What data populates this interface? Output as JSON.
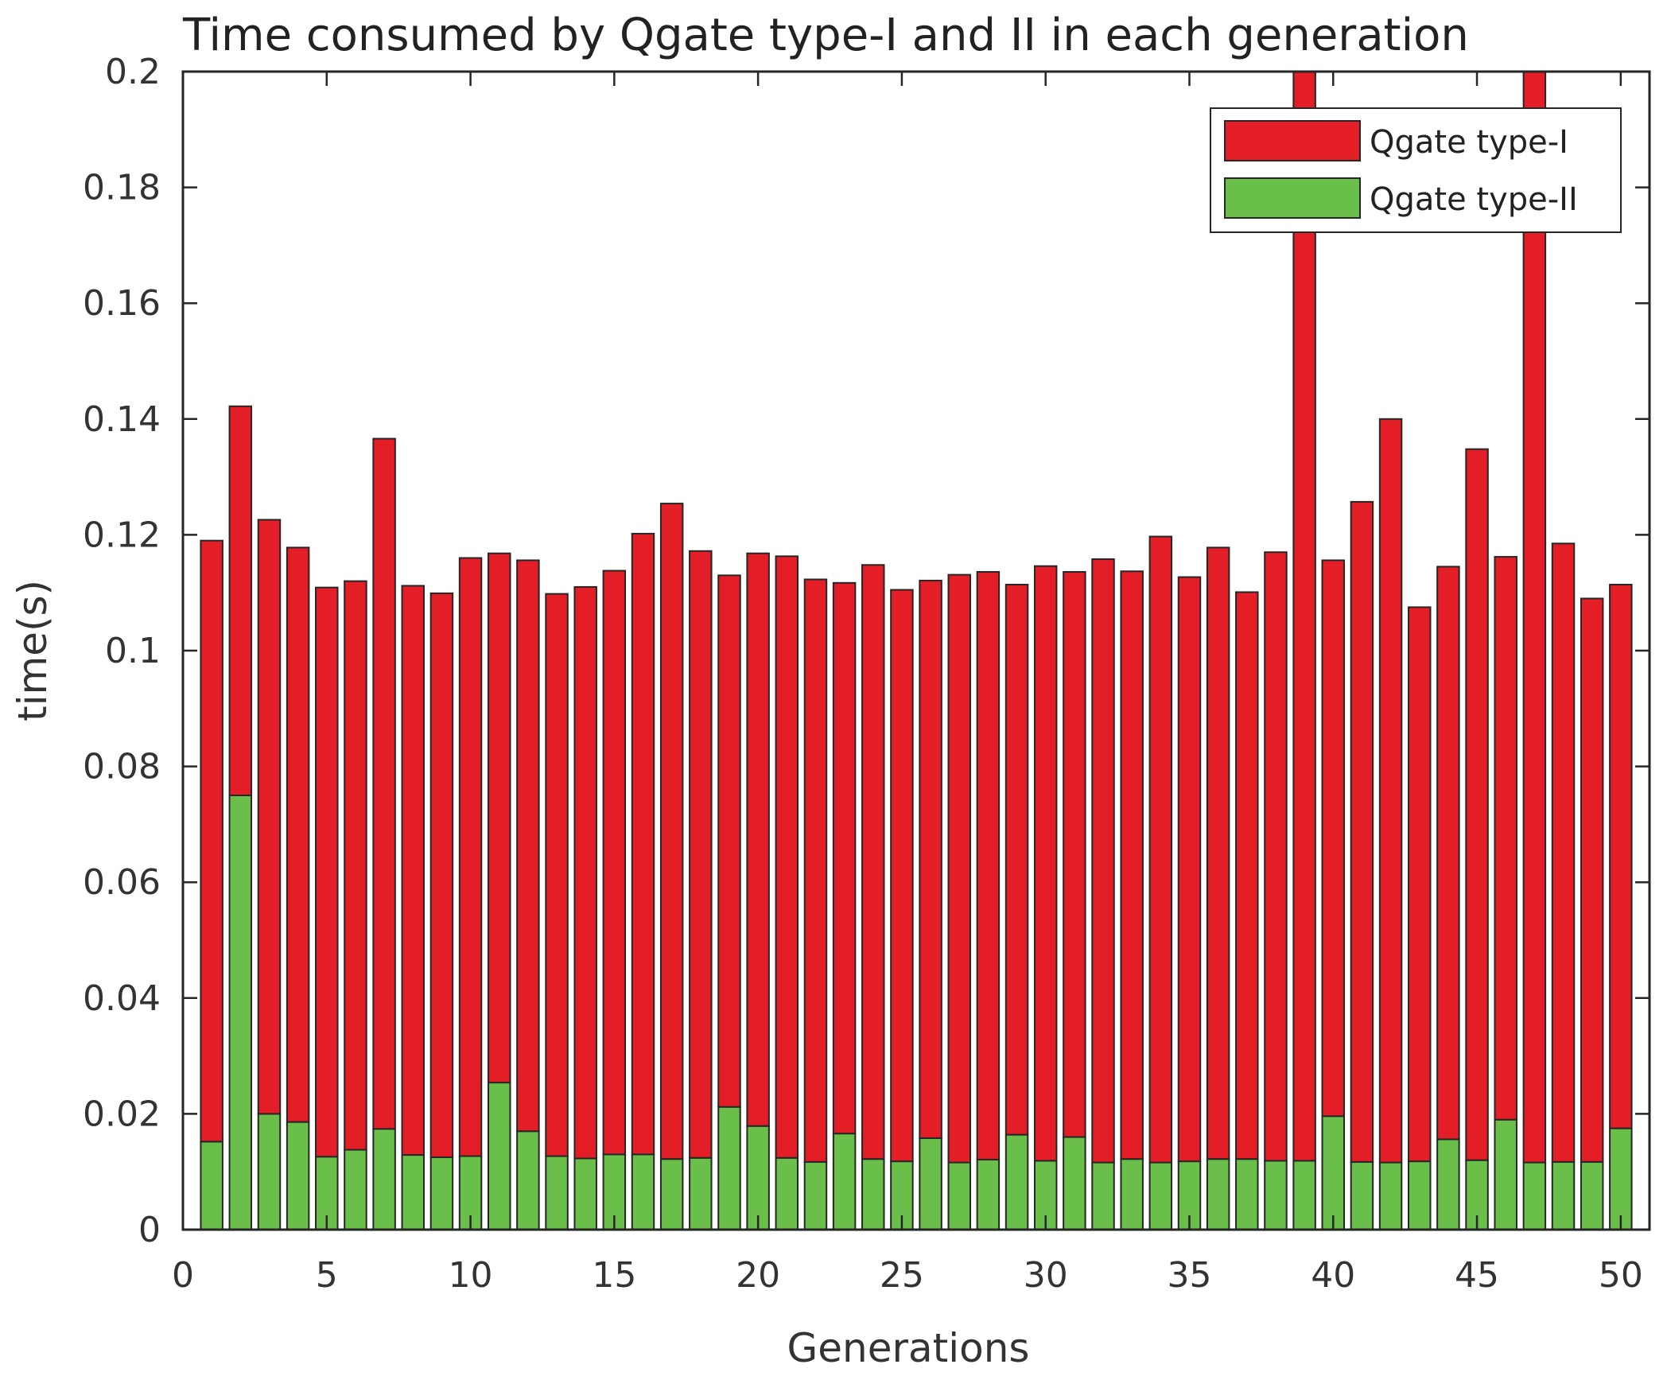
{
  "chart_data": {
    "type": "bar",
    "stacked": true,
    "title": "Time consumed by Qgate type-I and II in each generation",
    "xlabel": "Generations",
    "ylabel": "time(s)",
    "xlim": [
      0,
      51
    ],
    "ylim": [
      0,
      0.2
    ],
    "xticks": [
      0,
      5,
      10,
      15,
      20,
      25,
      30,
      35,
      40,
      45,
      50
    ],
    "yticks": [
      0,
      0.02,
      0.04,
      0.06,
      0.08,
      0.1,
      0.12,
      0.14,
      0.16,
      0.18,
      0.2
    ],
    "ytick_labels": [
      "0",
      "0.02",
      "0.04",
      "0.06",
      "0.08",
      "0.1",
      "0.12",
      "0.14",
      "0.16",
      "0.18",
      "0.2"
    ],
    "grid": false,
    "legend_position": "top-right",
    "x": [
      1,
      2,
      3,
      4,
      5,
      6,
      7,
      8,
      9,
      10,
      11,
      12,
      13,
      14,
      15,
      16,
      17,
      18,
      19,
      20,
      21,
      22,
      23,
      24,
      25,
      26,
      27,
      28,
      29,
      30,
      31,
      32,
      33,
      34,
      35,
      36,
      37,
      38,
      39,
      40,
      41,
      42,
      43,
      44,
      45,
      46,
      47,
      48,
      49,
      50
    ],
    "series": [
      {
        "name": "Qgate type-II",
        "color": "#6abf4b",
        "values": [
          0.0152,
          0.075,
          0.02,
          0.0186,
          0.0126,
          0.0138,
          0.0174,
          0.0129,
          0.0125,
          0.0127,
          0.0254,
          0.017,
          0.0127,
          0.0123,
          0.013,
          0.013,
          0.0122,
          0.0124,
          0.0212,
          0.0179,
          0.0124,
          0.0117,
          0.0166,
          0.0122,
          0.0118,
          0.0158,
          0.0116,
          0.0121,
          0.0164,
          0.0119,
          0.016,
          0.0116,
          0.0122,
          0.0116,
          0.0118,
          0.0122,
          0.0122,
          0.0119,
          0.0119,
          0.0196,
          0.0117,
          0.0116,
          0.0118,
          0.0156,
          0.012,
          0.019,
          0.0116,
          0.0117,
          0.0117,
          0.0175
        ]
      },
      {
        "name": "Qgate type-I",
        "color": "#e41e26",
        "values": [
          0.1038,
          0.0672,
          0.1026,
          0.0992,
          0.0983,
          0.0982,
          0.1192,
          0.0983,
          0.0974,
          0.1033,
          0.0914,
          0.0986,
          0.0971,
          0.0987,
          0.1008,
          0.1072,
          0.1132,
          0.1048,
          0.0918,
          0.0989,
          0.1039,
          0.1006,
          0.0951,
          0.1026,
          0.0987,
          0.0963,
          0.1015,
          0.1015,
          0.095,
          0.1027,
          0.0976,
          0.1042,
          0.1015,
          0.1081,
          0.1009,
          0.1056,
          0.0979,
          0.1051,
          0.1881,
          0.096,
          0.114,
          0.1284,
          0.0957,
          0.0989,
          0.1228,
          0.0972,
          0.1884,
          0.1068,
          0.0973,
          0.0939
        ]
      }
    ],
    "legend": [
      {
        "label": "Qgate type-I",
        "color": "#e41e26"
      },
      {
        "label": "Qgate type-II",
        "color": "#6abf4b"
      }
    ]
  }
}
